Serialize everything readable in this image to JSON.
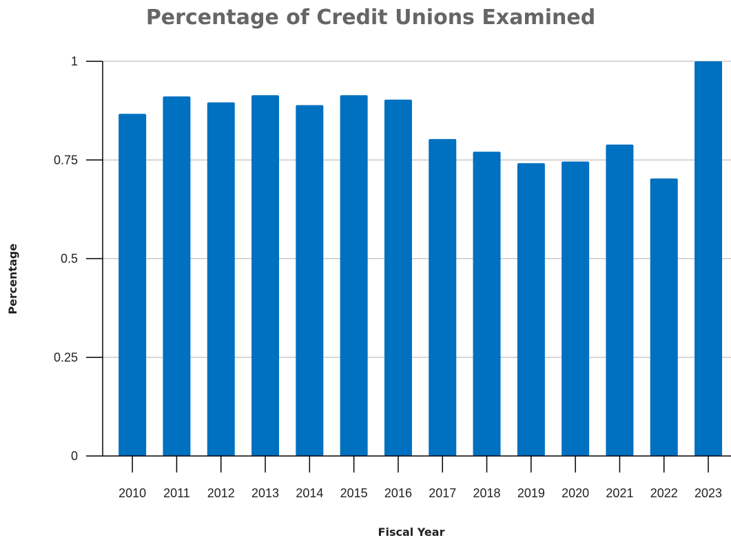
{
  "chart_data": {
    "type": "bar",
    "title": "Percentage of Credit Unions Examined",
    "xlabel": "Fiscal Year",
    "ylabel": "Percentage",
    "categories": [
      "2010",
      "2011",
      "2012",
      "2013",
      "2014",
      "2015",
      "2016",
      "2017",
      "2018",
      "2019",
      "2020",
      "2021",
      "2022",
      "2023"
    ],
    "values": [
      0.867,
      0.911,
      0.896,
      0.914,
      0.889,
      0.914,
      0.903,
      0.803,
      0.771,
      0.742,
      0.746,
      0.789,
      0.703,
      1.0
    ],
    "ylim": [
      0,
      1
    ],
    "yticks": [
      0,
      0.25,
      0.5,
      0.75,
      1
    ],
    "ytick_labels": [
      "0",
      "0.25",
      "0.5",
      "0.75",
      "1"
    ],
    "grid": true,
    "legend": "none",
    "colors": {
      "bar": "#0070C0",
      "title": "#666666",
      "grid": "#BFBFBF",
      "axis": "#000000"
    }
  }
}
